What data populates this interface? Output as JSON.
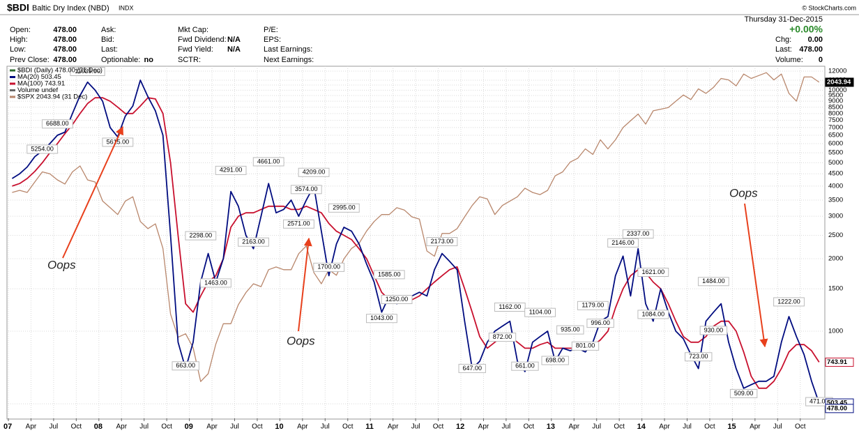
{
  "header": {
    "symbol": "$BDI",
    "name": "Baltic Dry Index (NBD)",
    "exchange": "INDX",
    "credit": "© StockCharts.com",
    "date": "Thursday 31-Dec-2015",
    "change_pct": "+0.00%",
    "columns": [
      [
        {
          "label": "Open:",
          "value": "478.00"
        },
        {
          "label": "High:",
          "value": "478.00"
        },
        {
          "label": "Low:",
          "value": "478.00"
        },
        {
          "label": "Prev Close:",
          "value": "478.00"
        }
      ],
      [
        {
          "label": "Ask:"
        },
        {
          "label": "Bid:"
        },
        {
          "label": "Last:"
        },
        {
          "label": "Optionable:",
          "value": "no"
        }
      ],
      [
        {
          "label": "Mkt Cap:"
        },
        {
          "label": "Fwd Dividend:",
          "value": "N/A"
        },
        {
          "label": "Fwd Yield:",
          "value": "N/A"
        },
        {
          "label": "SCTR:"
        }
      ],
      [
        {
          "label": "P/E:"
        },
        {
          "label": "EPS:"
        },
        {
          "label": "Last Earnings:"
        },
        {
          "label": "Next Earnings:"
        }
      ]
    ],
    "right": [
      {
        "label": "Chg:",
        "value": "0.00"
      },
      {
        "label": "Last:",
        "value": "478.00"
      },
      {
        "label": "Volume:",
        "value": "0"
      }
    ]
  },
  "chart_data": {
    "type": "line",
    "log": true,
    "grid": true,
    "x": [
      "2007-01",
      "2007-02",
      "2007-03",
      "2007-04",
      "2007-05",
      "2007-06",
      "2007-07",
      "2007-08",
      "2007-09",
      "2007-10",
      "2007-11",
      "2007-12",
      "2008-01",
      "2008-02",
      "2008-03",
      "2008-04",
      "2008-05",
      "2008-06",
      "2008-07",
      "2008-08",
      "2008-09",
      "2008-10",
      "2008-11",
      "2008-12",
      "2009-01",
      "2009-02",
      "2009-03",
      "2009-04",
      "2009-05",
      "2009-06",
      "2009-07",
      "2009-08",
      "2009-09",
      "2009-10",
      "2009-11",
      "2009-12",
      "2010-01",
      "2010-02",
      "2010-03",
      "2010-04",
      "2010-05",
      "2010-06",
      "2010-07",
      "2010-08",
      "2010-09",
      "2010-10",
      "2010-11",
      "2010-12",
      "2011-01",
      "2011-02",
      "2011-03",
      "2011-04",
      "2011-05",
      "2011-06",
      "2011-07",
      "2011-08",
      "2011-09",
      "2011-10",
      "2011-11",
      "2011-12",
      "2012-01",
      "2012-02",
      "2012-03",
      "2012-04",
      "2012-05",
      "2012-06",
      "2012-07",
      "2012-08",
      "2012-09",
      "2012-10",
      "2012-11",
      "2012-12",
      "2013-01",
      "2013-02",
      "2013-03",
      "2013-04",
      "2013-05",
      "2013-06",
      "2013-07",
      "2013-08",
      "2013-09",
      "2013-10",
      "2013-11",
      "2013-12",
      "2014-01",
      "2014-02",
      "2014-03",
      "2014-04",
      "2014-05",
      "2014-06",
      "2014-07",
      "2014-08",
      "2014-09",
      "2014-10",
      "2014-11",
      "2014-12",
      "2015-01",
      "2015-02",
      "2015-03",
      "2015-04",
      "2015-05",
      "2015-06",
      "2015-07",
      "2015-08",
      "2015-09",
      "2015-10",
      "2015-11",
      "2015-12"
    ],
    "series": [
      {
        "name": "MA(20) 503.45",
        "color": "#000c80",
        "values": [
          4300,
          4500,
          4800,
          5300,
          5600,
          6000,
          6500,
          6700,
          8000,
          9500,
          10800,
          10000,
          9000,
          7000,
          6400,
          7800,
          8600,
          11000,
          9400,
          8200,
          6500,
          2500,
          900,
          700,
          900,
          1600,
          2100,
          1600,
          2000,
          3800,
          3300,
          2500,
          2200,
          3000,
          4100,
          3100,
          3200,
          3500,
          3000,
          3500,
          4000,
          2600,
          1700,
          2300,
          2700,
          2600,
          2300,
          1900,
          1600,
          1200,
          1400,
          1300,
          1350,
          1400,
          1450,
          1400,
          1800,
          2100,
          1950,
          1800,
          1100,
          700,
          750,
          900,
          1000,
          1050,
          1100,
          750,
          680,
          900,
          950,
          1000,
          750,
          850,
          830,
          850,
          820,
          900,
          1100,
          1150,
          1700,
          2050,
          1400,
          2200,
          1300,
          1100,
          1500,
          1200,
          1000,
          930,
          800,
          700,
          1100,
          1200,
          1300,
          900,
          700,
          580,
          600,
          620,
          620,
          650,
          900,
          1150,
          950,
          800,
          620,
          503
        ]
      },
      {
        "name": "MA(100) 743.91",
        "color": "#c8102e",
        "values": [
          4000,
          4100,
          4300,
          4600,
          5000,
          5500,
          6000,
          6600,
          7200,
          8000,
          8800,
          9300,
          9300,
          9000,
          8500,
          8000,
          8000,
          8600,
          9300,
          9200,
          8000,
          5000,
          2500,
          1300,
          1200,
          1400,
          1600,
          1700,
          2000,
          2700,
          3000,
          3100,
          3100,
          3200,
          3300,
          3300,
          3300,
          3200,
          3200,
          3300,
          3200,
          3100,
          2800,
          2600,
          2500,
          2400,
          2200,
          2000,
          1700,
          1450,
          1350,
          1350,
          1350,
          1350,
          1400,
          1500,
          1600,
          1700,
          1800,
          1850,
          1500,
          1200,
          950,
          850,
          900,
          950,
          950,
          900,
          850,
          850,
          880,
          900,
          850,
          850,
          850,
          850,
          850,
          870,
          920,
          1000,
          1250,
          1500,
          1700,
          1800,
          1750,
          1600,
          1500,
          1300,
          1100,
          950,
          900,
          900,
          950,
          1050,
          1100,
          1100,
          1000,
          820,
          650,
          580,
          580,
          620,
          700,
          820,
          880,
          880,
          830,
          744
        ]
      },
      {
        "name": "$SPX 2043.94 (31 Dec)",
        "color": "#b8866b",
        "axis": "y2",
        "values": [
          1420,
          1430,
          1420,
          1470,
          1520,
          1510,
          1480,
          1460,
          1520,
          1550,
          1480,
          1470,
          1380,
          1350,
          1320,
          1380,
          1400,
          1290,
          1260,
          1280,
          1180,
          950,
          880,
          890,
          850,
          760,
          780,
          860,
          920,
          920,
          980,
          1020,
          1050,
          1040,
          1100,
          1110,
          1100,
          1100,
          1160,
          1190,
          1090,
          1050,
          1100,
          1080,
          1140,
          1180,
          1200,
          1250,
          1290,
          1320,
          1320,
          1350,
          1340,
          1310,
          1300,
          1170,
          1150,
          1240,
          1240,
          1260,
          1310,
          1360,
          1400,
          1390,
          1320,
          1360,
          1380,
          1400,
          1440,
          1420,
          1410,
          1430,
          1500,
          1520,
          1570,
          1590,
          1640,
          1610,
          1690,
          1640,
          1690,
          1760,
          1800,
          1840,
          1780,
          1860,
          1870,
          1880,
          1920,
          1960,
          1930,
          2000,
          1970,
          2010,
          2070,
          2060,
          2020,
          2100,
          2070,
          2090,
          2110,
          2060,
          2100,
          1970,
          1920,
          2080,
          2080,
          2044
        ]
      }
    ],
    "legend_extra": [
      {
        "label": "$BDI (Daily) 478.00 (31 Dec)",
        "color": "#2e6b2e"
      },
      {
        "label": "Volume undef",
        "color": "#666666"
      }
    ],
    "ylim": [
      435,
      12570
    ],
    "yticks": [
      500,
      1000,
      1500,
      2000,
      2500,
      3000,
      3500,
      4000,
      4500,
      5000,
      5500,
      6000,
      6500,
      7000,
      7500,
      8000,
      8500,
      9000,
      9500,
      10000,
      10500,
      11000,
      12000
    ],
    "y2lim": [
      673,
      2155
    ],
    "xticks": [
      {
        "value": "2007-01",
        "label": "07"
      },
      {
        "value": "2007-04",
        "label": "Apr"
      },
      {
        "value": "2007-07",
        "label": "Jul"
      },
      {
        "value": "2007-10",
        "label": "Oct"
      },
      {
        "value": "2008-01",
        "label": "08"
      },
      {
        "value": "2008-04",
        "label": "Apr"
      },
      {
        "value": "2008-07",
        "label": "Jul"
      },
      {
        "value": "2008-10",
        "label": "Oct"
      },
      {
        "value": "2009-01",
        "label": "09"
      },
      {
        "value": "2009-04",
        "label": "Apr"
      },
      {
        "value": "2009-07",
        "label": "Jul"
      },
      {
        "value": "2009-10",
        "label": "Oct"
      },
      {
        "value": "2010-01",
        "label": "10"
      },
      {
        "value": "2010-04",
        "label": "Apr"
      },
      {
        "value": "2010-07",
        "label": "Jul"
      },
      {
        "value": "2010-10",
        "label": "Oct"
      },
      {
        "value": "2011-01",
        "label": "11"
      },
      {
        "value": "2011-04",
        "label": "Apr"
      },
      {
        "value": "2011-07",
        "label": "Jul"
      },
      {
        "value": "2011-10",
        "label": "Oct"
      },
      {
        "value": "2012-01",
        "label": "12"
      },
      {
        "value": "2012-04",
        "label": "Apr"
      },
      {
        "value": "2012-07",
        "label": "Jul"
      },
      {
        "value": "2012-10",
        "label": "Oct"
      },
      {
        "value": "2013-01",
        "label": "13"
      },
      {
        "value": "2013-04",
        "label": "Apr"
      },
      {
        "value": "2013-07",
        "label": "Jul"
      },
      {
        "value": "2013-10",
        "label": "Oct"
      },
      {
        "value": "2014-01",
        "label": "14"
      },
      {
        "value": "2014-04",
        "label": "Apr"
      },
      {
        "value": "2014-07",
        "label": "Jul"
      },
      {
        "value": "2014-10",
        "label": "Oct"
      },
      {
        "value": "2015-01",
        "label": "15"
      },
      {
        "value": "2015-04",
        "label": "Apr"
      },
      {
        "value": "2015-07",
        "label": "Jul"
      },
      {
        "value": "2015-10",
        "label": "Oct"
      }
    ],
    "annotations": [
      {
        "x": "2007-05",
        "value": 5254,
        "label": "5254.00"
      },
      {
        "x": "2007-07",
        "value": 6688,
        "label": "6688.00"
      },
      {
        "x": "2007-11",
        "value": 11039,
        "label": "11039.00"
      },
      {
        "x": "2008-03",
        "value": 5615,
        "label": "5615.00"
      },
      {
        "x": "2008-12",
        "value": 663,
        "label": "663.00"
      },
      {
        "x": "2009-02",
        "value": 2298,
        "label": "2298.00"
      },
      {
        "x": "2009-04",
        "value": 1463,
        "label": "1463.00"
      },
      {
        "x": "2009-06",
        "value": 4291,
        "label": "4291.00"
      },
      {
        "x": "2009-09",
        "value": 2163,
        "label": "2163.00"
      },
      {
        "x": "2009-11",
        "value": 4661,
        "label": "4661.00"
      },
      {
        "x": "2010-03",
        "value": 2571,
        "label": "2571.00"
      },
      {
        "x": "2010-04",
        "value": 3574,
        "label": "3574.00"
      },
      {
        "x": "2010-05",
        "value": 4209,
        "label": "4209.00"
      },
      {
        "x": "2010-07",
        "value": 1700,
        "label": "1700.00"
      },
      {
        "x": "2010-09",
        "value": 2995,
        "label": "2995.00"
      },
      {
        "x": "2011-02",
        "value": 1043,
        "label": "1043.00"
      },
      {
        "x": "2011-03",
        "value": 1585,
        "label": "1585.00"
      },
      {
        "x": "2011-04",
        "value": 1250,
        "label": "1250.00"
      },
      {
        "x": "2011-10",
        "value": 2173,
        "label": "2173.00"
      },
      {
        "x": "2012-02",
        "value": 647,
        "label": "647.00"
      },
      {
        "x": "2012-06",
        "value": 872,
        "label": "872.00"
      },
      {
        "x": "2012-07",
        "value": 1162,
        "label": "1162.00"
      },
      {
        "x": "2012-09",
        "value": 661,
        "label": "661.00"
      },
      {
        "x": "2012-11",
        "value": 1104,
        "label": "1104.00"
      },
      {
        "x": "2013-01",
        "value": 698,
        "label": "698.00"
      },
      {
        "x": "2013-03",
        "value": 935,
        "label": "935.00"
      },
      {
        "x": "2013-05",
        "value": 801,
        "label": "801.00"
      },
      {
        "x": "2013-06",
        "value": 1179,
        "label": "1179.00"
      },
      {
        "x": "2013-07",
        "value": 996,
        "label": "996.00"
      },
      {
        "x": "2013-10",
        "value": 2146,
        "label": "2146.00"
      },
      {
        "x": "2013-12",
        "value": 2337,
        "label": "2337.00"
      },
      {
        "x": "2014-02",
        "value": 1621,
        "label": "1621.00"
      },
      {
        "x": "2014-02",
        "value": 1084,
        "label": "1084.00"
      },
      {
        "x": "2014-08",
        "value": 723,
        "label": "723.00"
      },
      {
        "x": "2014-10",
        "value": 1484,
        "label": "1484.00"
      },
      {
        "x": "2014-10",
        "value": 930,
        "label": "930.00"
      },
      {
        "x": "2015-02",
        "value": 509,
        "label": "509.00"
      },
      {
        "x": "2015-08",
        "value": 1222,
        "label": "1222.00"
      },
      {
        "x": "2015-12",
        "value": 471,
        "label": "471.00"
      }
    ],
    "last_values": [
      {
        "axis": "y2",
        "value": 2043.94,
        "label": "2043.94"
      },
      {
        "axis": "y",
        "value": 743.91,
        "label": "743.91"
      },
      {
        "axis": "y",
        "value": 503.45,
        "label": "503.45"
      },
      {
        "axis": "y",
        "value": 478,
        "label": "478.00"
      }
    ],
    "notes": [
      "Oops",
      "Oops",
      "Oops"
    ]
  }
}
